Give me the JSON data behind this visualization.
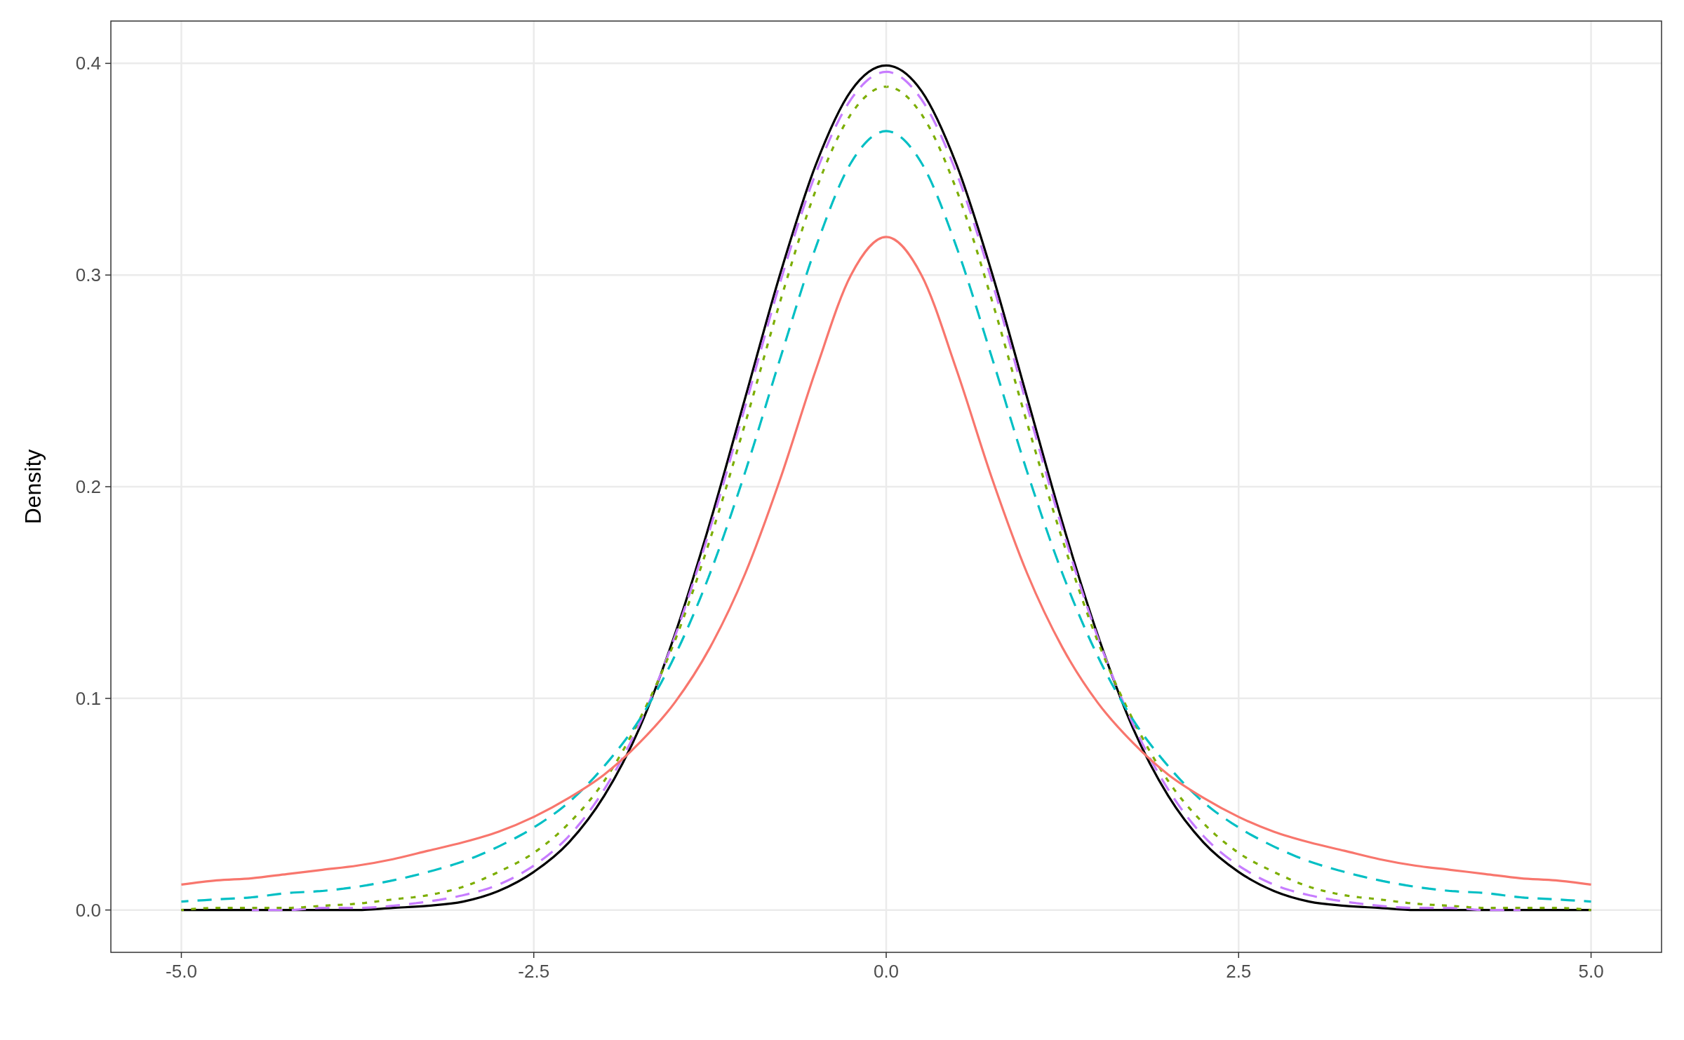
{
  "chart_data": {
    "type": "line",
    "ylabel": "Density",
    "x": [
      -5,
      -4.75,
      -4.5,
      -4.25,
      -4,
      -3.75,
      -3.5,
      -3.25,
      -3,
      -2.75,
      -2.5,
      -2.25,
      -2,
      -1.75,
      -1.5,
      -1.25,
      -1,
      -0.75,
      -0.5,
      -0.25,
      0,
      0.25,
      0.5,
      0.75,
      1,
      1.25,
      1.5,
      1.75,
      2,
      2.25,
      2.5,
      2.75,
      3,
      3.25,
      3.5,
      3.75,
      4,
      4.25,
      4.5,
      4.75,
      5
    ],
    "series": [
      {
        "color": "#f8766d",
        "line_style": "solid",
        "values": [
          0.012,
          0.014,
          0.015,
          0.017,
          0.019,
          0.021,
          0.024,
          0.028,
          0.032,
          0.037,
          0.044,
          0.053,
          0.064,
          0.079,
          0.098,
          0.124,
          0.159,
          0.204,
          0.255,
          0.3,
          0.318,
          0.3,
          0.255,
          0.204,
          0.159,
          0.124,
          0.098,
          0.079,
          0.064,
          0.053,
          0.044,
          0.037,
          0.032,
          0.028,
          0.024,
          0.021,
          0.019,
          0.017,
          0.015,
          0.014,
          0.012
        ]
      },
      {
        "color": "#00bfc4",
        "line_style": "dashed",
        "values": [
          0.004,
          0.005,
          0.006,
          0.008,
          0.009,
          0.011,
          0.014,
          0.018,
          0.023,
          0.03,
          0.039,
          0.051,
          0.068,
          0.09,
          0.12,
          0.159,
          0.207,
          0.261,
          0.313,
          0.353,
          0.368,
          0.353,
          0.313,
          0.261,
          0.207,
          0.159,
          0.12,
          0.09,
          0.068,
          0.051,
          0.039,
          0.03,
          0.023,
          0.018,
          0.014,
          0.011,
          0.009,
          0.008,
          0.006,
          0.005,
          0.004
        ]
      },
      {
        "color": "#7cae00",
        "line_style": "dotted",
        "values": [
          0.0,
          0.001,
          0.001,
          0.001,
          0.002,
          0.003,
          0.005,
          0.007,
          0.011,
          0.018,
          0.027,
          0.041,
          0.061,
          0.09,
          0.127,
          0.175,
          0.23,
          0.288,
          0.34,
          0.376,
          0.389,
          0.376,
          0.34,
          0.288,
          0.23,
          0.175,
          0.127,
          0.09,
          0.061,
          0.041,
          0.027,
          0.018,
          0.011,
          0.007,
          0.005,
          0.003,
          0.002,
          0.001,
          0.001,
          0.001,
          0.0
        ]
      },
      {
        "color": "#c77cff",
        "line_style": "dashed",
        "values": [
          null,
          null,
          0,
          0,
          0.001,
          0.001,
          0.002,
          0.004,
          0.007,
          0.012,
          0.021,
          0.035,
          0.057,
          0.088,
          0.129,
          0.18,
          0.238,
          0.297,
          0.348,
          0.383,
          0.396,
          0.383,
          0.348,
          0.297,
          0.238,
          0.18,
          0.129,
          0.088,
          0.057,
          0.035,
          0.021,
          0.012,
          0.007,
          0.004,
          0.002,
          0.001,
          0.001,
          0,
          0,
          null,
          null
        ]
      },
      {
        "color": "#000000",
        "line_style": "solid",
        "values": [
          0,
          0,
          0,
          0,
          0,
          0,
          0.001,
          0.002,
          0.004,
          0.009,
          0.018,
          0.032,
          0.054,
          0.086,
          0.13,
          0.183,
          0.242,
          0.301,
          0.352,
          0.387,
          0.399,
          0.387,
          0.352,
          0.301,
          0.242,
          0.183,
          0.13,
          0.086,
          0.054,
          0.032,
          0.018,
          0.009,
          0.004,
          0.002,
          0.001,
          0,
          0,
          0,
          0,
          0,
          0
        ]
      }
    ],
    "xlim": [
      -5.5,
      5.5
    ],
    "ylim": [
      -0.02,
      0.42
    ],
    "xticks": [
      {
        "value": -5,
        "label": "-5.0"
      },
      {
        "value": -2.5,
        "label": "-2.5"
      },
      {
        "value": 0,
        "label": "0.0"
      },
      {
        "value": 2.5,
        "label": "2.5"
      },
      {
        "value": 5,
        "label": "5.0"
      }
    ],
    "yticks": [
      {
        "value": 0,
        "label": "0.0"
      },
      {
        "value": 0.1,
        "label": "0.1"
      },
      {
        "value": 0.2,
        "label": "0.2"
      },
      {
        "value": 0.3,
        "label": "0.3"
      },
      {
        "value": 0.4,
        "label": "0.4"
      }
    ],
    "grid": true
  }
}
